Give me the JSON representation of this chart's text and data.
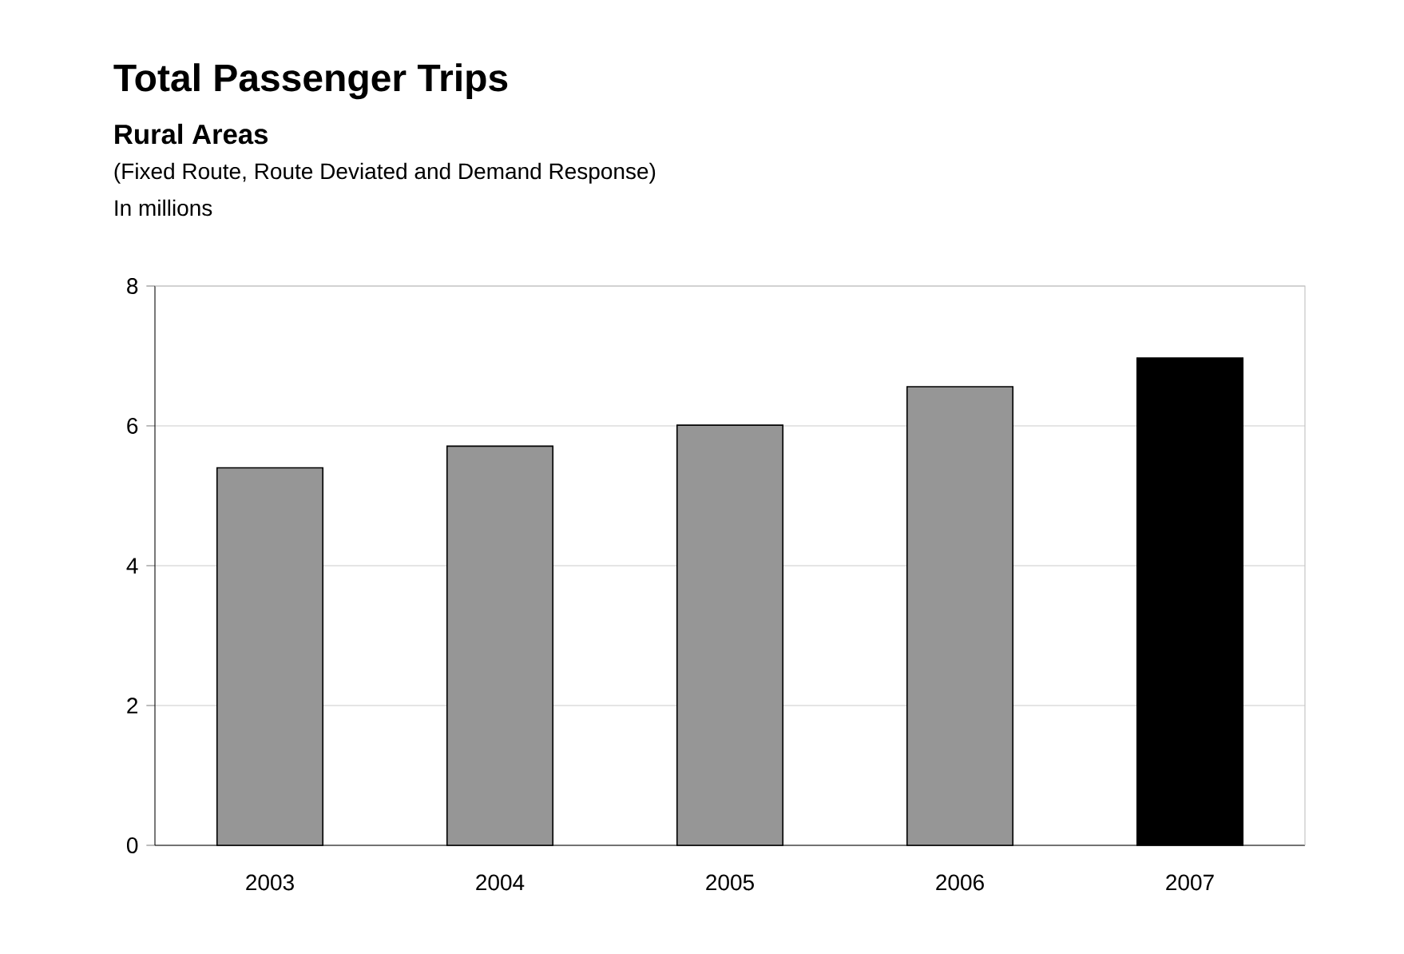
{
  "chart_data": {
    "type": "bar",
    "title": "Total Passenger Trips",
    "subtitle": "Rural Areas",
    "annotations": [
      "(Fixed Route, Route Deviated and Demand Response)",
      "In millions"
    ],
    "categories": [
      "2003",
      "2004",
      "2005",
      "2006",
      "2007"
    ],
    "values": [
      5.4,
      5.71,
      6.01,
      6.56,
      6.97
    ],
    "colors": [
      "#969696",
      "#969696",
      "#969696",
      "#969696",
      "#000000"
    ],
    "ylim": [
      0,
      8
    ],
    "yticks": [
      0,
      2,
      4,
      6,
      8
    ],
    "grid": "y"
  }
}
